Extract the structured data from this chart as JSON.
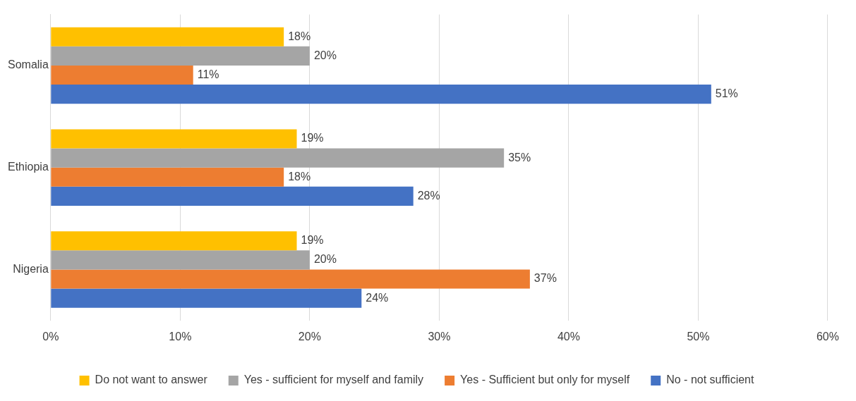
{
  "chart_data": {
    "type": "bar",
    "orientation": "horizontal",
    "categories": [
      "Somalia",
      "Ethiopia",
      "Nigeria"
    ],
    "series": [
      {
        "name": "Do not want to answer",
        "color": "#ffc000",
        "values": [
          18,
          19,
          19
        ],
        "value_labels": [
          "18%",
          "19%",
          "19%"
        ]
      },
      {
        "name": "Yes - sufficient for myself and family",
        "color": "#a5a5a5",
        "values": [
          20,
          35,
          20
        ],
        "value_labels": [
          "20%",
          "35%",
          "20%"
        ]
      },
      {
        "name": "Yes - Sufficient but only for myself",
        "color": "#ed7d31",
        "values": [
          11,
          18,
          37
        ],
        "value_labels": [
          "11%",
          "18%",
          "37%"
        ]
      },
      {
        "name": "No - not sufficient",
        "color": "#4472c4",
        "values": [
          51,
          28,
          24
        ],
        "value_labels": [
          "51%",
          "28%",
          "24%"
        ]
      }
    ],
    "xlim": [
      0,
      60
    ],
    "xticks": [
      {
        "value": 0,
        "label": "0%"
      },
      {
        "value": 10,
        "label": "10%"
      },
      {
        "value": 20,
        "label": "20%"
      },
      {
        "value": 30,
        "label": "30%"
      },
      {
        "value": 40,
        "label": "40%"
      },
      {
        "value": 50,
        "label": "50%"
      },
      {
        "value": 60,
        "label": "60%"
      }
    ],
    "grid": "x",
    "legend": "bottom"
  }
}
